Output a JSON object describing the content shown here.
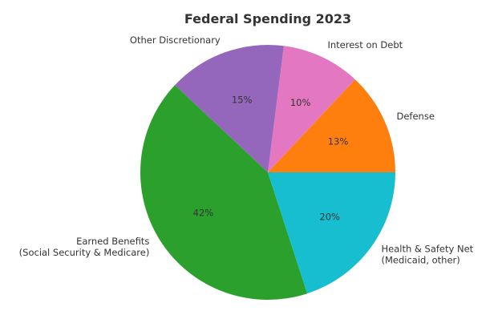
{
  "chart_data": {
    "type": "pie",
    "title": "Federal Spending 2023",
    "start_angle_deg": 0,
    "direction": "counterclockwise",
    "slices": [
      {
        "category": "Defense",
        "value": 13,
        "label": "13%",
        "color": "#ff7f0e"
      },
      {
        "category": "Interest on Debt",
        "value": 10,
        "label": "10%",
        "color": "#e377c2"
      },
      {
        "category": "Other Discretionary",
        "value": 15,
        "label": "15%",
        "color": "#9467bd"
      },
      {
        "category": "Earned Benefits\n(Social Security & Medicare)",
        "value": 42,
        "label": "42%",
        "color": "#2ca02c"
      },
      {
        "category": "Health & Safety Net\n(Medicaid, other)",
        "value": 20,
        "label": "20%",
        "color": "#17becf"
      }
    ]
  }
}
